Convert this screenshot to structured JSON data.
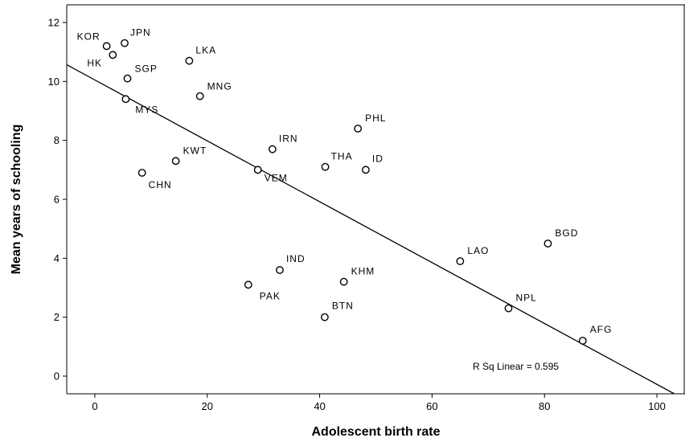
{
  "chart_data": {
    "type": "scatter",
    "xlabel": "Adolescent birth rate",
    "ylabel": "Mean years of schooling",
    "xlim": [
      -5,
      105
    ],
    "ylim": [
      -0.6,
      12.6
    ],
    "xticks": [
      0,
      20,
      40,
      60,
      80,
      100
    ],
    "yticks": [
      0,
      2,
      4,
      6,
      8,
      10,
      12
    ],
    "points": [
      {
        "label": "KOR",
        "x": 2.1,
        "y": 11.2
      },
      {
        "label": "JPN",
        "x": 5.3,
        "y": 11.3
      },
      {
        "label": "HK",
        "x": 3.2,
        "y": 10.9
      },
      {
        "label": "LKA",
        "x": 16.8,
        "y": 10.7
      },
      {
        "label": "SGP",
        "x": 5.8,
        "y": 10.1
      },
      {
        "label": "MNG",
        "x": 18.7,
        "y": 9.5
      },
      {
        "label": "MYS",
        "x": 5.5,
        "y": 9.4
      },
      {
        "label": "PHL",
        "x": 46.8,
        "y": 8.4
      },
      {
        "label": "IRN",
        "x": 31.6,
        "y": 7.7
      },
      {
        "label": "KWT",
        "x": 14.4,
        "y": 7.3
      },
      {
        "label": "THA",
        "x": 41.0,
        "y": 7.1
      },
      {
        "label": "ID",
        "x": 48.2,
        "y": 7.0
      },
      {
        "label": "VEM",
        "x": 29.0,
        "y": 7.0
      },
      {
        "label": "CHN",
        "x": 8.4,
        "y": 6.9
      },
      {
        "label": "BGD",
        "x": 80.6,
        "y": 4.5
      },
      {
        "label": "LAO",
        "x": 65.0,
        "y": 3.9
      },
      {
        "label": "IND",
        "x": 32.9,
        "y": 3.6
      },
      {
        "label": "KHM",
        "x": 44.3,
        "y": 3.2
      },
      {
        "label": "PAK",
        "x": 27.3,
        "y": 3.1
      },
      {
        "label": "NPL",
        "x": 73.6,
        "y": 2.3
      },
      {
        "label": "BTN",
        "x": 40.9,
        "y": 2.0
      },
      {
        "label": "AFG",
        "x": 86.8,
        "y": 1.2
      }
    ],
    "fit_line": {
      "intercept": 10.05,
      "slope": -0.1033
    },
    "annotation": "R Sq Linear = 0.595",
    "grid": false,
    "legend": "none"
  }
}
